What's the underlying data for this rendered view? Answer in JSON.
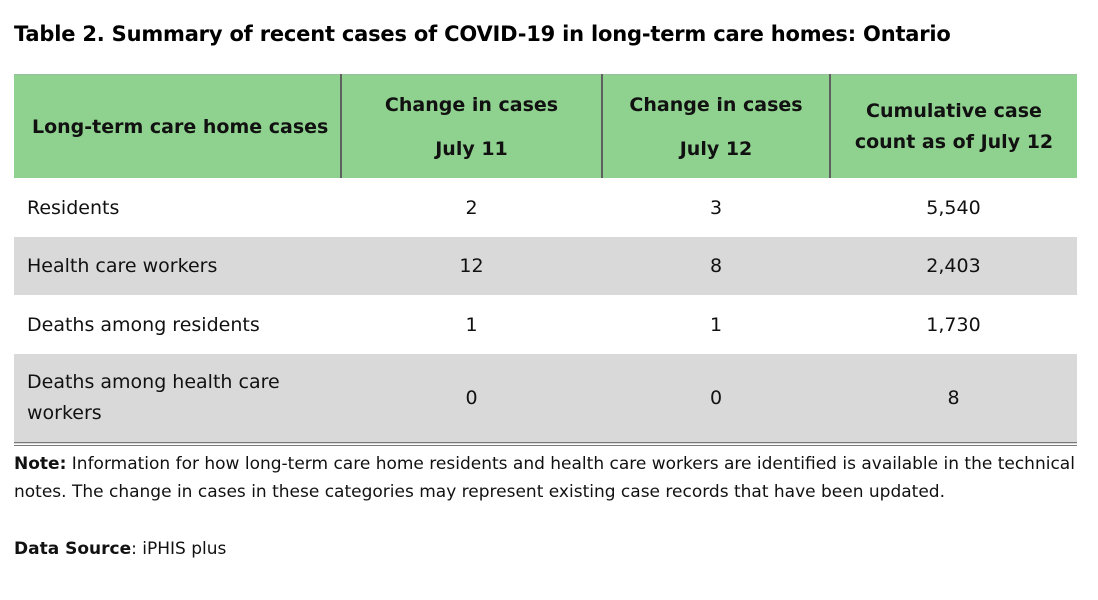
{
  "title": "Table 2. Summary of recent cases of COVID-19 in long-term care homes: Ontario",
  "table": {
    "headers": {
      "col1": "Long-term care home cases",
      "col2_line1": "Change in cases",
      "col2_line2": "July 11",
      "col3_line1": "Change in cases",
      "col3_line2": "July 12",
      "col4_line1": "Cumulative case",
      "col4_line2": "count as of July 12"
    },
    "rows": [
      {
        "label": "Residents",
        "july11": "2",
        "july12": "3",
        "cumulative": "5,540"
      },
      {
        "label": "Health care workers",
        "july11": "12",
        "july12": "8",
        "cumulative": "2,403"
      },
      {
        "label": "Deaths among residents",
        "july11": "1",
        "july12": "1",
        "cumulative": "1,730"
      },
      {
        "label": "Deaths among health care workers",
        "july11": "0",
        "july12": "0",
        "cumulative": "8"
      }
    ]
  },
  "note": {
    "label": "Note:",
    "text": " Information for how long-term care home residents and health care workers are identified is available in the technical notes. The change in cases in these categories may represent existing case records that have been updated."
  },
  "source": {
    "label": "Data Source",
    "text": ": iPHIS plus"
  },
  "colors": {
    "header_bg": "#8fd18e",
    "stripe_bg": "#d9d9d9"
  }
}
